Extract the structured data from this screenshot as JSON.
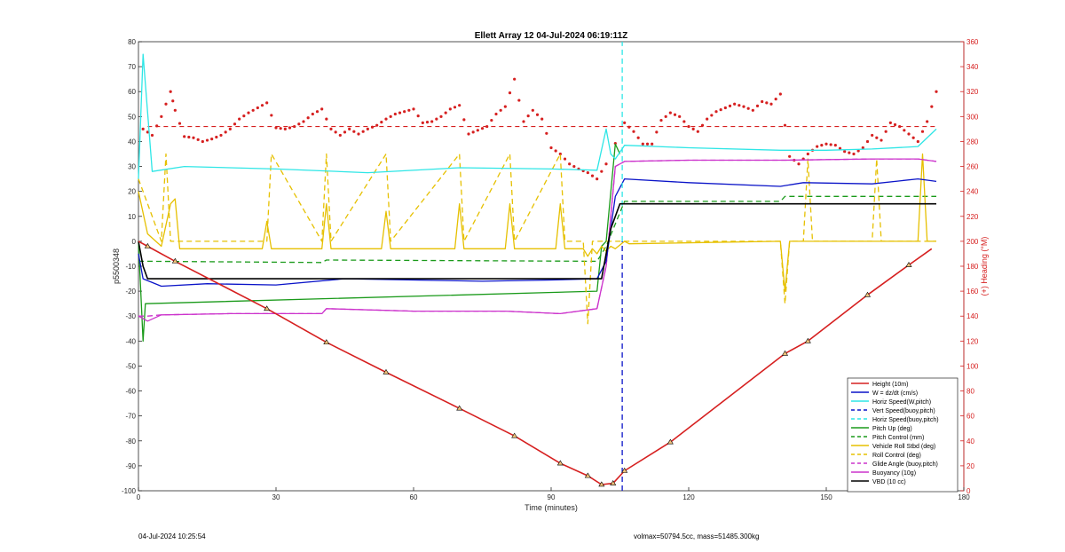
{
  "chart_data": {
    "type": "line",
    "title": "Ellett Array 12 04-Jul-2024 06:19:11Z",
    "xlabel": "Time (minutes)",
    "ylabel": "p5500348",
    "y2label": "(+) Heading (°M)",
    "xlim": [
      0,
      180
    ],
    "ylim": [
      -100,
      80
    ],
    "y2lim": [
      0,
      360
    ],
    "x_ticks": [
      "0",
      "30",
      "60",
      "90",
      "120",
      "150",
      "180"
    ],
    "y_ticks": [
      "-100",
      "-90",
      "-80",
      "-70",
      "-60",
      "-50",
      "-40",
      "-30",
      "-20",
      "-10",
      "0",
      "10",
      "20",
      "30",
      "40",
      "50",
      "60",
      "70",
      "80"
    ],
    "y2_ticks": [
      "0",
      "20",
      "40",
      "60",
      "80",
      "100",
      "120",
      "140",
      "160",
      "180",
      "200",
      "220",
      "240",
      "260",
      "280",
      "300",
      "320",
      "340",
      "360"
    ],
    "grid": false,
    "legend_position": "bottom-right",
    "colors": {
      "height": "#d62020",
      "w": "#0b14c8",
      "horiz": "#2ee6e6",
      "pitch": "#1a9a1a",
      "roll": "#e6c000",
      "glide": "#cc33cc",
      "vbd": "#000000",
      "heading": "#d62020"
    },
    "series": [
      {
        "name": "Height (10m)",
        "color": "#d62020",
        "dash": "solid",
        "x": [
          0,
          2,
          8,
          28,
          41,
          54,
          70,
          82,
          92,
          98,
          101,
          103.5,
          106,
          116,
          141,
          146,
          159,
          168,
          173
        ],
        "y": [
          0,
          -2,
          -8,
          -27,
          -40.5,
          -52.5,
          -67,
          -78,
          -89,
          -94,
          -97.5,
          -97,
          -92,
          -80.5,
          -45,
          -40,
          -21.5,
          -9.5,
          -3
        ]
      },
      {
        "name": "W = dz/dt (cm/s)",
        "color": "#0b14c8",
        "dash": "solid",
        "x": [
          0,
          1,
          5,
          15,
          30,
          45,
          60,
          75,
          90,
          100,
          102,
          104,
          106,
          120,
          140,
          145,
          160,
          170,
          174
        ],
        "y": [
          -5,
          -15,
          -18,
          -17,
          -17.5,
          -15,
          -15.5,
          -16,
          -15.5,
          -15,
          -8,
          18,
          25,
          23.5,
          22,
          23.5,
          23,
          25,
          24
        ]
      },
      {
        "name": "Horiz Speed(W,pitch)",
        "color": "#2ee6e6",
        "dash": "solid",
        "x": [
          0,
          1,
          3,
          10,
          30,
          50,
          70,
          90,
          100,
          102,
          103,
          104,
          106,
          120,
          140,
          150,
          160,
          170,
          174
        ],
        "y": [
          25,
          75,
          28,
          30,
          29,
          27.5,
          29.5,
          29,
          28.5,
          45,
          35,
          33,
          38.5,
          37.5,
          36.5,
          36.5,
          37,
          38,
          45
        ]
      },
      {
        "name": "Vert Speed(buoy,pitch)",
        "color": "#0b14c8",
        "dash": "dash",
        "x": [
          105.5,
          105.5
        ],
        "y": [
          -100,
          0
        ]
      },
      {
        "name": "Horiz Speed(buoy,pitch)",
        "color": "#2ee6e6",
        "dash": "dash",
        "x": [
          105.5,
          105.5
        ],
        "y": [
          0,
          80
        ]
      },
      {
        "name": "Pitch Up (deg)",
        "color": "#1a9a1a",
        "dash": "solid",
        "x": [
          0,
          1,
          1.5,
          100,
          101,
          102,
          104,
          105
        ],
        "y": [
          0,
          -40,
          -25,
          -20,
          -2,
          0,
          39,
          35
        ]
      },
      {
        "name": "Pitch Control (mm)",
        "color": "#1a9a1a",
        "dash": "dash",
        "x": [
          0,
          2,
          40,
          41,
          100,
          102,
          106,
          140,
          141,
          174
        ],
        "y": [
          -8,
          -8,
          -8.5,
          -7.5,
          -8,
          -2,
          16,
          16,
          18,
          18
        ]
      },
      {
        "name": "Vehicle Roll Stbd (deg)",
        "color": "#e6c000",
        "dash": "solid",
        "x": [
          0,
          2,
          5,
          7,
          8,
          9,
          27,
          28,
          29,
          40,
          41,
          42,
          53,
          54,
          55,
          69,
          70,
          71,
          80,
          81,
          82,
          91,
          92,
          93,
          97,
          98,
          99,
          100,
          101,
          102,
          103,
          104,
          106,
          107,
          140,
          141,
          142,
          143,
          170,
          171,
          172,
          174
        ],
        "y": [
          20,
          3,
          -2,
          15,
          17,
          -3,
          -3,
          8,
          -3,
          -3,
          15,
          -3,
          -3,
          12,
          -3,
          -3,
          15,
          -3,
          -3,
          15,
          -3,
          -3,
          15,
          -3,
          -3,
          -6,
          -3,
          -5,
          -2,
          -4,
          -2,
          -3,
          0,
          -1,
          0,
          -20,
          0,
          0,
          0,
          35,
          0,
          0
        ]
      },
      {
        "name": "Roll Control (deg)",
        "color": "#e6c000",
        "dash": "dash",
        "x": [
          0,
          5,
          6,
          7,
          28,
          29,
          40,
          41,
          42,
          54,
          55,
          70,
          71,
          81,
          82,
          92,
          93,
          97,
          98,
          99,
          104,
          106,
          140,
          141,
          142,
          143,
          145,
          146,
          147,
          160,
          161,
          162,
          170,
          174
        ],
        "y": [
          25,
          0,
          35,
          0,
          0,
          35,
          0,
          35,
          0,
          35,
          0,
          35,
          0,
          35,
          0,
          35,
          0,
          0,
          -33,
          0,
          0,
          0,
          0,
          -25,
          0,
          0,
          0,
          33,
          0,
          0,
          33,
          0,
          0,
          0
        ]
      },
      {
        "name": "Glide Angle (buoy,pitch)",
        "color": "#cc33cc",
        "dash": "dash",
        "x": [
          0,
          2,
          5,
          20,
          40,
          41,
          60,
          80,
          92,
          100,
          102,
          104,
          106,
          120,
          140,
          141,
          160,
          170,
          174
        ],
        "y": [
          -30,
          -30,
          -29.5,
          -29,
          -29,
          -27,
          -28,
          -28,
          -29,
          -27,
          -10,
          30,
          32,
          32.5,
          32.5,
          32.5,
          33,
          33,
          32
        ]
      },
      {
        "name": "Buoyancy (10g)",
        "color": "#cc33cc",
        "dash": "solid",
        "x": [
          0,
          2,
          5,
          20,
          40,
          41,
          60,
          80,
          92,
          100,
          102,
          104,
          106,
          120,
          140,
          141,
          160,
          170,
          174
        ],
        "y": [
          -30,
          -32,
          -29.5,
          -29,
          -29,
          -27,
          -28,
          -28,
          -29,
          -27,
          -10,
          30,
          32,
          32.5,
          32.5,
          32.5,
          33,
          33,
          32
        ]
      },
      {
        "name": "VBD (10 cc)",
        "color": "#000000",
        "dash": "solid",
        "x": [
          0,
          1,
          2,
          100,
          101,
          103,
          105,
          174
        ],
        "y": [
          0,
          -10,
          -15,
          -15,
          -15,
          5,
          15,
          15
        ]
      }
    ],
    "heading_series": {
      "color": "#d62020",
      "reference_value": 292,
      "x": [
        1,
        3,
        5,
        7,
        8,
        10,
        12,
        14,
        16,
        18,
        20,
        22,
        24,
        26,
        28,
        30,
        32,
        34,
        36,
        38,
        40,
        42,
        44,
        46,
        48,
        50,
        52,
        54,
        56,
        58,
        60,
        62,
        64,
        66,
        68,
        70,
        72,
        74,
        76,
        78,
        80,
        82,
        84,
        86,
        88,
        90,
        92,
        94,
        96,
        98,
        100,
        102,
        106,
        108,
        110,
        112,
        114,
        116,
        118,
        120,
        122,
        124,
        126,
        128,
        130,
        132,
        134,
        136,
        138,
        140,
        142,
        144,
        146,
        148,
        150,
        152,
        154,
        156,
        158,
        160,
        162,
        164,
        166,
        168,
        170,
        172,
        174
      ],
      "y": [
        290,
        285,
        300,
        320,
        305,
        284,
        283,
        280,
        282,
        285,
        290,
        298,
        303,
        307,
        311,
        291,
        290,
        292,
        296,
        302,
        306,
        290,
        285,
        290,
        286,
        290,
        293,
        298,
        302,
        304,
        306,
        295,
        296,
        300,
        306,
        309,
        286,
        289,
        292,
        302,
        308,
        330,
        296,
        305,
        298,
        275,
        270,
        262,
        258,
        255,
        250,
        262,
        295,
        288,
        278,
        278,
        297,
        303,
        300,
        292,
        288,
        298,
        304,
        307,
        310,
        308,
        305,
        312,
        310,
        318,
        268,
        262,
        270,
        276,
        278,
        277,
        272,
        270,
        275,
        285,
        281,
        295,
        292,
        286,
        280,
        296,
        320
      ]
    }
  },
  "legend": {
    "items": [
      {
        "label": "Height (10m)",
        "color": "#d62020",
        "dash": "solid"
      },
      {
        "label": "W = dz/dt (cm/s)",
        "color": "#0b14c8",
        "dash": "solid"
      },
      {
        "label": "Horiz Speed(W,pitch)",
        "color": "#2ee6e6",
        "dash": "solid"
      },
      {
        "label": "Vert Speed(buoy,pitch)",
        "color": "#0b14c8",
        "dash": "dash"
      },
      {
        "label": "Horiz Speed(buoy,pitch)",
        "color": "#2ee6e6",
        "dash": "dash"
      },
      {
        "label": "Pitch Up (deg)",
        "color": "#1a9a1a",
        "dash": "solid"
      },
      {
        "label": "Pitch Control (mm)",
        "color": "#1a9a1a",
        "dash": "dash"
      },
      {
        "label": "Vehicle Roll Stbd (deg)",
        "color": "#e6c000",
        "dash": "solid"
      },
      {
        "label": "Roll Control (deg)",
        "color": "#e6c000",
        "dash": "dash"
      },
      {
        "label": "Glide Angle (buoy,pitch)",
        "color": "#cc33cc",
        "dash": "dash"
      },
      {
        "label": "Buoyancy (10g)",
        "color": "#cc33cc",
        "dash": "solid"
      },
      {
        "label": "VBD (10 cc)",
        "color": "#000000",
        "dash": "solid"
      }
    ]
  },
  "footer": {
    "timestamp": "04-Jul-2024 10:25:54",
    "stats": "volmax=50794.5cc, mass=51485.300kg"
  }
}
